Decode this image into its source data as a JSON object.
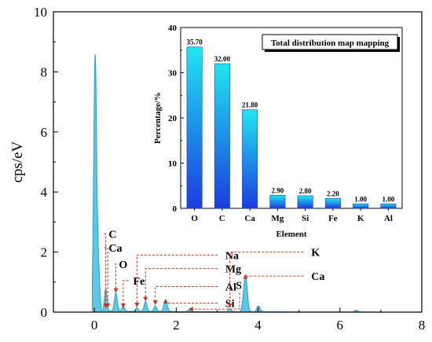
{
  "chart_data": [
    {
      "type": "area",
      "title": "",
      "xlabel": "",
      "ylabel": "cps/eV",
      "xlim": [
        -1,
        8
      ],
      "ylim": [
        0,
        10
      ],
      "x_ticks": [
        "0",
        "2",
        "4",
        "6",
        "8"
      ],
      "y_ticks": [
        "0",
        "2",
        "4",
        "6",
        "8",
        "10"
      ],
      "x_tick_values": [
        0,
        2,
        4,
        6,
        8
      ],
      "y_tick_values": [
        0,
        2,
        4,
        6,
        8,
        10
      ],
      "fill_color": "#5bc8e6",
      "line_color": "#2b9fc9",
      "peaks": [
        {
          "x": 0.02,
          "y": 8.5,
          "w": 0.035
        },
        {
          "x": 0.1,
          "y": 1.4,
          "w": 0.03
        },
        {
          "x": 0.277,
          "y": 0.75,
          "w": 0.03
        },
        {
          "x": 0.525,
          "y": 0.6,
          "w": 0.035
        },
        {
          "x": 0.705,
          "y": 0.18,
          "w": 0.03
        },
        {
          "x": 1.04,
          "y": 0.12,
          "w": 0.03
        },
        {
          "x": 1.25,
          "y": 0.32,
          "w": 0.035
        },
        {
          "x": 1.49,
          "y": 0.18,
          "w": 0.035
        },
        {
          "x": 1.74,
          "y": 0.38,
          "w": 0.04
        },
        {
          "x": 2.31,
          "y": 0.05,
          "w": 0.03
        },
        {
          "x": 3.31,
          "y": 0.1,
          "w": 0.035
        },
        {
          "x": 3.69,
          "y": 1.2,
          "w": 0.045
        },
        {
          "x": 4.01,
          "y": 0.2,
          "w": 0.04
        },
        {
          "x": 6.4,
          "y": 0.06,
          "w": 0.04
        }
      ],
      "annotations": [
        {
          "label": "C",
          "x": 0.277,
          "y": 0.1,
          "text_x": 0.35,
          "text_y": 2.6,
          "side": "right"
        },
        {
          "label": "Ca",
          "x": 0.33,
          "y": 0.1,
          "text_x": 0.35,
          "text_y": 2.15,
          "side": "right"
        },
        {
          "label": "O",
          "x": 0.525,
          "y": 0.6,
          "text_x": 0.6,
          "text_y": 1.6,
          "side": "right"
        },
        {
          "label": "Fe",
          "x": 0.705,
          "y": 0.1,
          "text_x": 0.95,
          "text_y": 1.05,
          "side": "right"
        },
        {
          "label": "Na",
          "x": 1.04,
          "y": 0.12,
          "text_x": 3.2,
          "text_y": 1.9,
          "side": "left"
        },
        {
          "label": "Mg",
          "x": 1.25,
          "y": 0.32,
          "text_x": 3.2,
          "text_y": 1.45,
          "side": "left"
        },
        {
          "label": "Al",
          "x": 1.49,
          "y": 0.2,
          "text_x": 3.2,
          "text_y": 0.85,
          "side": "left"
        },
        {
          "label": "Si",
          "x": 1.74,
          "y": 0.38,
          "text_x": 3.2,
          "text_y": 0.3,
          "side": "left"
        },
        {
          "label": "S",
          "x": 2.31,
          "y": 0.06,
          "text_x": 3.55,
          "text_y": 0.85,
          "side": "label-only"
        },
        {
          "label": "K",
          "x": 3.31,
          "y": 0.1,
          "text_x": 5.3,
          "text_y": 2.0,
          "side": "left"
        },
        {
          "label": "Ca",
          "x": 3.69,
          "y": 1.2,
          "text_x": 5.3,
          "text_y": 1.2,
          "side": "left"
        }
      ]
    },
    {
      "type": "bar",
      "title": "Total distribution map mapping",
      "xlabel": "Element",
      "ylabel": "Percentage/%",
      "ylim": [
        0,
        40
      ],
      "y_ticks": [
        "0",
        "10",
        "20",
        "30",
        "40"
      ],
      "y_tick_values": [
        0,
        10,
        20,
        30,
        40
      ],
      "categories": [
        "O",
        "C",
        "Ca",
        "Mg",
        "Si",
        "Fe",
        "K",
        "Al"
      ],
      "values": [
        35.7,
        32.0,
        21.8,
        2.9,
        2.8,
        2.2,
        1.0,
        1.0
      ],
      "value_labels": [
        "35.70",
        "32.00",
        "21.80",
        "2.90",
        "2.80",
        "2.20",
        "1.00",
        "1.00"
      ],
      "gradient_top": "#20e6f0",
      "gradient_bottom": "#1b3be0",
      "legend_placement": "top-right"
    }
  ]
}
